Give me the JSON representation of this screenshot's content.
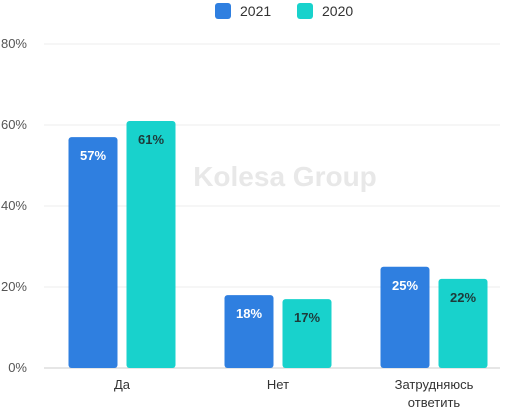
{
  "chart_data": {
    "type": "bar",
    "categories": [
      "Да",
      "Нет",
      [
        "Затрудняюсь",
        "ответить"
      ]
    ],
    "series": [
      {
        "name": "2021",
        "color": "#2f7fe0",
        "values": [
          57,
          18,
          25
        ],
        "label_color": "#ffffff"
      },
      {
        "name": "2020",
        "color": "#18d2cc",
        "values": [
          61,
          17,
          22
        ],
        "label_color": "#1e3a3a"
      }
    ],
    "value_suffix": "%",
    "ylim": [
      0,
      80
    ],
    "yticks": [
      0,
      20,
      40,
      60,
      80
    ],
    "ytick_labels": [
      "0%",
      "20%",
      "40%",
      "60%",
      "80%"
    ],
    "grid": true,
    "legend_position": "top-center",
    "watermark": "Kolesa Group",
    "title": "",
    "xlabel": "",
    "ylabel": ""
  }
}
